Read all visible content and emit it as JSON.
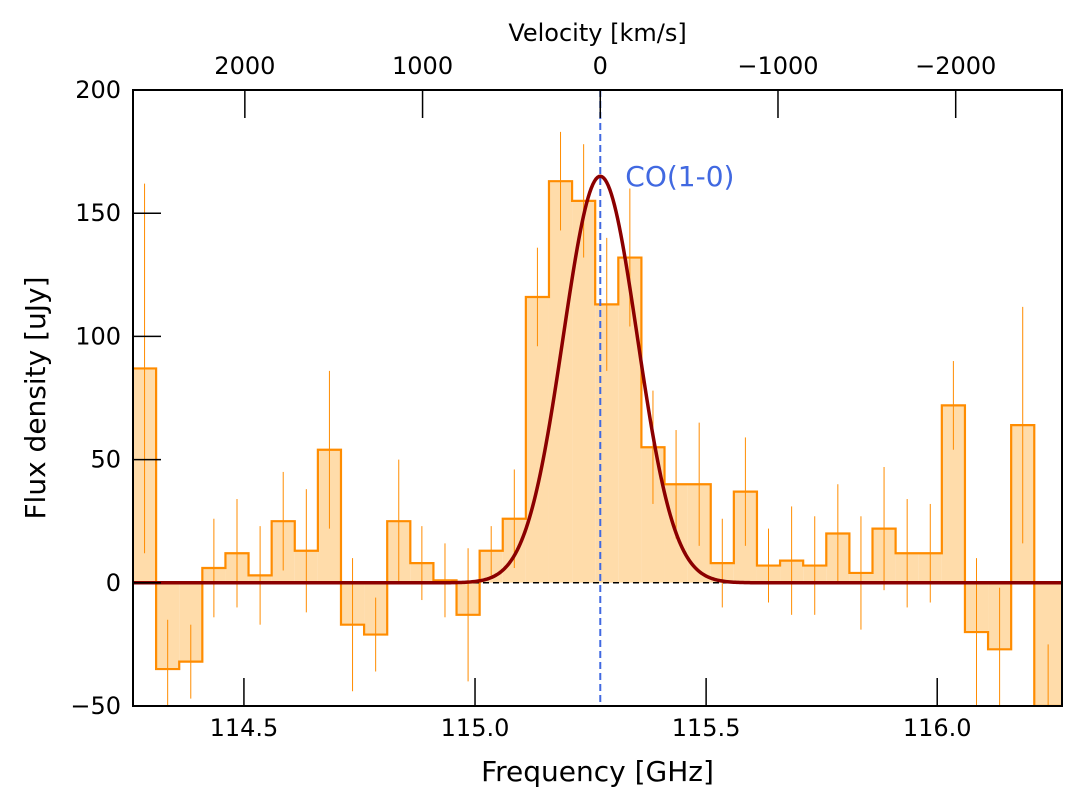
{
  "chart_data": {
    "type": "line",
    "title": "",
    "xlabel": "Frequency [GHz]",
    "ylabel": "Flux density [uJy]",
    "top_xlabel": "Velocity [km/s]",
    "xlim": [
      114.26,
      116.27
    ],
    "ylim": [
      -50,
      200
    ],
    "x_ticks": [
      114.5,
      115.0,
      115.5,
      116.0
    ],
    "x_tick_labels": [
      "114.5",
      "115.0",
      "115.5",
      "116.0"
    ],
    "y_ticks": [
      -50,
      0,
      50,
      100,
      150,
      200
    ],
    "y_tick_labels": [
      "−50",
      "0",
      "50",
      "100",
      "150",
      "200"
    ],
    "top_ticks_kms": [
      2000,
      1000,
      0,
      -1000,
      -2000
    ],
    "top_tick_labels": [
      "2000",
      "1000",
      "0",
      "−1000",
      "−2000"
    ],
    "rest_frequency_ghz": 115.271,
    "line_label": "CO(1-0)",
    "colors": {
      "histogram_edge": "#ff8c00",
      "histogram_fill": "#ffdcaa",
      "fit": "#8b0000",
      "marker_line": "#4169e1",
      "zero_line": "#000000"
    },
    "spectrum": {
      "name": "",
      "bin_edges": [
        114.26,
        114.31,
        114.36,
        114.41,
        114.46,
        114.51,
        114.56,
        114.61,
        114.66,
        114.71,
        114.76,
        114.81,
        114.86,
        114.91,
        114.96,
        115.01,
        115.06,
        115.11,
        115.16,
        115.21,
        115.26,
        115.31,
        115.36,
        115.41,
        115.46,
        115.51,
        115.56,
        115.61,
        115.66,
        115.71,
        115.76,
        115.81,
        115.86,
        115.91,
        115.96,
        116.01,
        116.06,
        116.11,
        116.16,
        116.21,
        116.27
      ],
      "flux": [
        87,
        -35,
        -32,
        6,
        12,
        3,
        25,
        13,
        54,
        -17,
        -21,
        25,
        8,
        1,
        -13,
        13,
        26,
        116,
        163,
        155,
        113,
        132,
        55,
        40,
        40,
        8,
        37,
        7,
        9,
        7,
        20,
        4,
        22,
        12,
        12,
        72,
        -20,
        -27,
        64,
        -50
      ],
      "errors": [
        75,
        20,
        15,
        20,
        22,
        20,
        20,
        25,
        32,
        27,
        15,
        25,
        15,
        15,
        27,
        10,
        20,
        20,
        20,
        23,
        27,
        28,
        23,
        22,
        25,
        18,
        22,
        15,
        22,
        20,
        20,
        23,
        25,
        22,
        20,
        18,
        30,
        25,
        48,
        25
      ]
    },
    "gaussian_fit": {
      "name": "",
      "amplitude": 165,
      "center_ghz": 115.271,
      "sigma_ghz": 0.08
    }
  }
}
